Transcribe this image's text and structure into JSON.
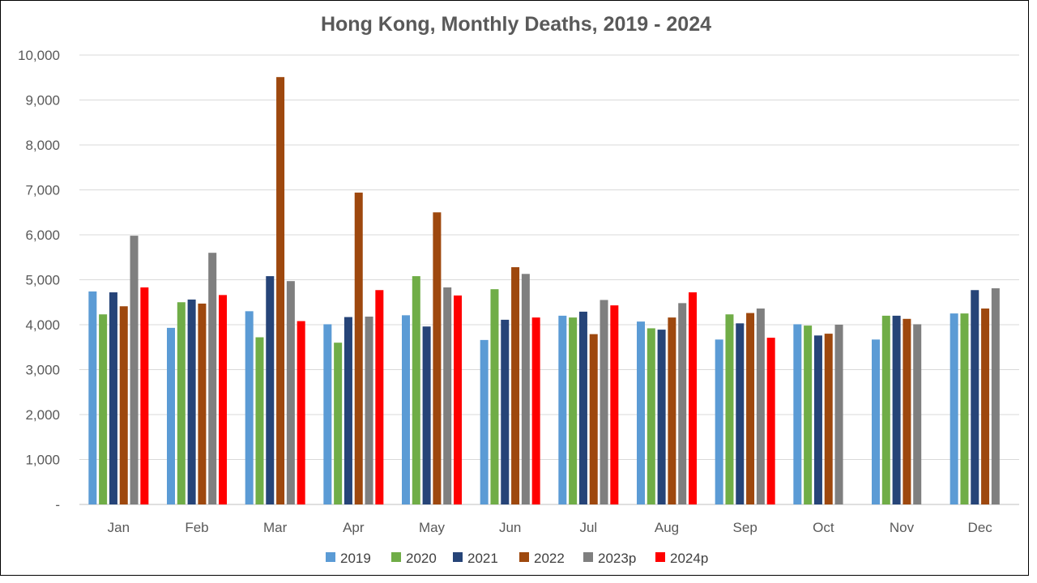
{
  "chart_data": {
    "type": "bar",
    "title": "Hong Kong, Monthly Deaths, 2019 - 2024",
    "xlabel": "",
    "ylabel": "",
    "ylim": [
      0,
      10000
    ],
    "y_ticks": [
      "-",
      "1,000",
      "2,000",
      "3,000",
      "4,000",
      "5,000",
      "6,000",
      "7,000",
      "8,000",
      "9,000",
      "10,000"
    ],
    "y_tick_values": [
      0,
      1000,
      2000,
      3000,
      4000,
      5000,
      6000,
      7000,
      8000,
      9000,
      10000
    ],
    "grid": "horizontal",
    "legend_position": "bottom",
    "categories": [
      "Jan",
      "Feb",
      "Mar",
      "Apr",
      "May",
      "Jun",
      "Jul",
      "Aug",
      "Sep",
      "Oct",
      "Nov",
      "Dec"
    ],
    "series": [
      {
        "name": "2019",
        "color": "#5B9BD5",
        "values": [
          4740,
          3930,
          4300,
          4010,
          4210,
          3660,
          4200,
          4070,
          3670,
          4010,
          3670,
          4250
        ]
      },
      {
        "name": "2020",
        "color": "#70AD47",
        "values": [
          4230,
          4500,
          3720,
          3600,
          5080,
          4790,
          4160,
          3920,
          4230,
          3980,
          4200,
          4250
        ]
      },
      {
        "name": "2021",
        "color": "#264478",
        "values": [
          4720,
          4560,
          5080,
          4170,
          3960,
          4110,
          4290,
          3890,
          4030,
          3760,
          4200,
          4770
        ]
      },
      {
        "name": "2022",
        "color": "#9E480E",
        "values": [
          4410,
          4470,
          9510,
          6940,
          6500,
          5280,
          3790,
          4160,
          4260,
          3800,
          4130,
          4360
        ]
      },
      {
        "name": "2023p",
        "color": "#7F7F7F",
        "values": [
          5980,
          5600,
          4970,
          4180,
          4830,
          5130,
          4550,
          4480,
          4360,
          4000,
          4010,
          4810
        ]
      },
      {
        "name": "2024p",
        "color": "#FF0000",
        "values": [
          4830,
          4660,
          4080,
          4770,
          4650,
          4160,
          4430,
          4720,
          3710,
          null,
          null,
          null
        ]
      }
    ]
  }
}
